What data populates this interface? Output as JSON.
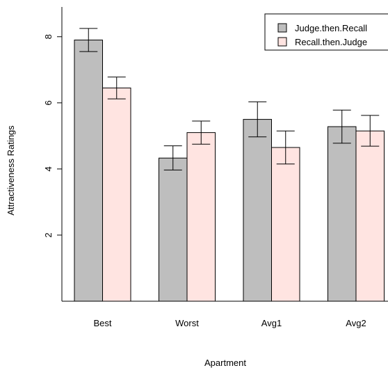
{
  "chart_data": {
    "type": "bar",
    "xlabel": "Apartment",
    "ylabel": "Attractiveness Ratings",
    "categories": [
      "Best",
      "Worst",
      "Avg1",
      "Avg2"
    ],
    "ylim": [
      0,
      8.9
    ],
    "yticks": [
      2,
      4,
      6,
      8
    ],
    "grid": false,
    "legend_position": "top-right",
    "series": [
      {
        "name": "Judge.then.Recall",
        "color": "#bebebe",
        "values": [
          7.9,
          4.33,
          5.5,
          5.28
        ],
        "error_low": [
          7.55,
          3.97,
          4.97,
          4.78
        ],
        "error_high": [
          8.25,
          4.7,
          6.03,
          5.78
        ]
      },
      {
        "name": "Recall.then.Judge",
        "color": "#ffe4e1",
        "values": [
          6.45,
          5.1,
          4.65,
          5.15
        ],
        "error_low": [
          6.12,
          4.75,
          4.15,
          4.69
        ],
        "error_high": [
          6.78,
          5.45,
          5.15,
          5.62
        ]
      }
    ]
  }
}
